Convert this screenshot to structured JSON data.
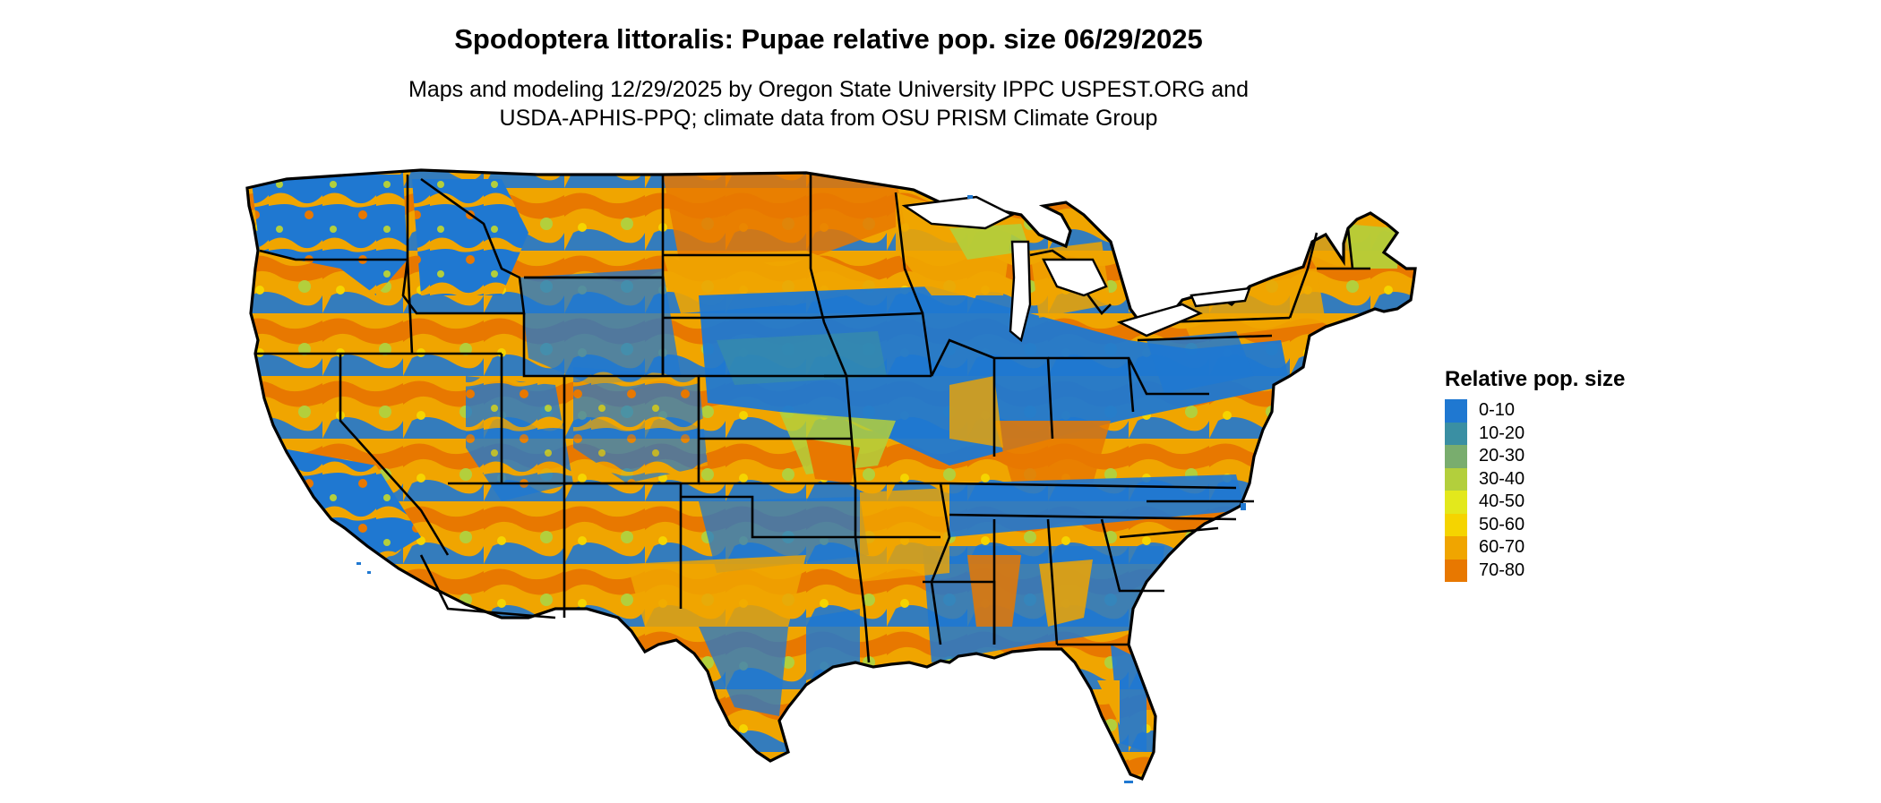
{
  "header": {
    "title": "Spodoptera littoralis: Pupae relative pop. size 06/29/2025",
    "subtitle_line1": "Maps and modeling 12/29/2025 by Oregon State University IPPC USPEST.ORG and",
    "subtitle_line2": "USDA-APHIS-PPQ; climate data from OSU PRISM Climate Group"
  },
  "legend": {
    "title": "Relative pop. size",
    "items": [
      {
        "label": "0-10",
        "color": "#1f78d1"
      },
      {
        "label": "10-20",
        "color": "#3a8fa3"
      },
      {
        "label": "20-30",
        "color": "#79ad6e"
      },
      {
        "label": "30-40",
        "color": "#b3cf3c"
      },
      {
        "label": "40-50",
        "color": "#e3e81c"
      },
      {
        "label": "50-60",
        "color": "#f5d400"
      },
      {
        "label": "60-70",
        "color": "#f0a500"
      },
      {
        "label": "70-80",
        "color": "#e87800"
      }
    ]
  }
}
